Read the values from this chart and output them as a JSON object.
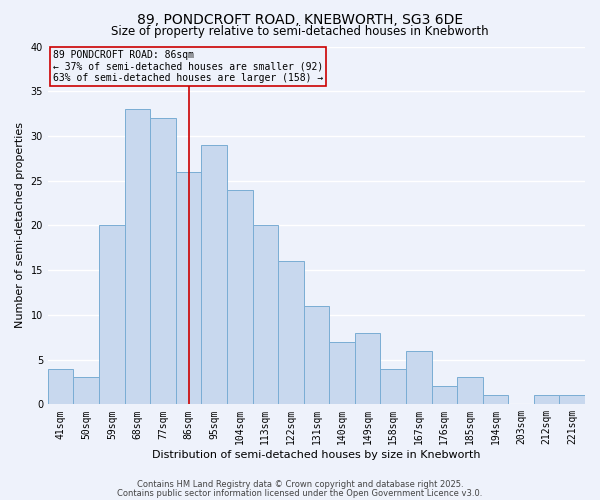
{
  "title": "89, PONDCROFT ROAD, KNEBWORTH, SG3 6DE",
  "subtitle": "Size of property relative to semi-detached houses in Knebworth",
  "xlabel": "Distribution of semi-detached houses by size in Knebworth",
  "ylabel": "Number of semi-detached properties",
  "categories": [
    "41sqm",
    "50sqm",
    "59sqm",
    "68sqm",
    "77sqm",
    "86sqm",
    "95sqm",
    "104sqm",
    "113sqm",
    "122sqm",
    "131sqm",
    "140sqm",
    "149sqm",
    "158sqm",
    "167sqm",
    "176sqm",
    "185sqm",
    "194sqm",
    "203sqm",
    "212sqm",
    "221sqm"
  ],
  "values": [
    4,
    3,
    20,
    33,
    32,
    26,
    29,
    24,
    20,
    16,
    11,
    7,
    8,
    4,
    6,
    2,
    3,
    1,
    0,
    1,
    1
  ],
  "bar_color": "#c8d8ee",
  "bar_edge_color": "#7aadd4",
  "highlight_index": 5,
  "highlight_line_color": "#cc0000",
  "annotation_line1": "89 PONDCROFT ROAD: 86sqm",
  "annotation_line2": "← 37% of semi-detached houses are smaller (92)",
  "annotation_line3": "63% of semi-detached houses are larger (158) →",
  "annotation_box_edge": "#cc0000",
  "ylim": [
    0,
    40
  ],
  "yticks": [
    0,
    5,
    10,
    15,
    20,
    25,
    30,
    35,
    40
  ],
  "footnote1": "Contains HM Land Registry data © Crown copyright and database right 2025.",
  "footnote2": "Contains public sector information licensed under the Open Government Licence v3.0.",
  "bg_color": "#eef2fb",
  "grid_color": "#ffffff",
  "title_fontsize": 10,
  "subtitle_fontsize": 8.5,
  "axis_label_fontsize": 8,
  "tick_fontsize": 7,
  "annotation_fontsize": 7,
  "footnote_fontsize": 6
}
